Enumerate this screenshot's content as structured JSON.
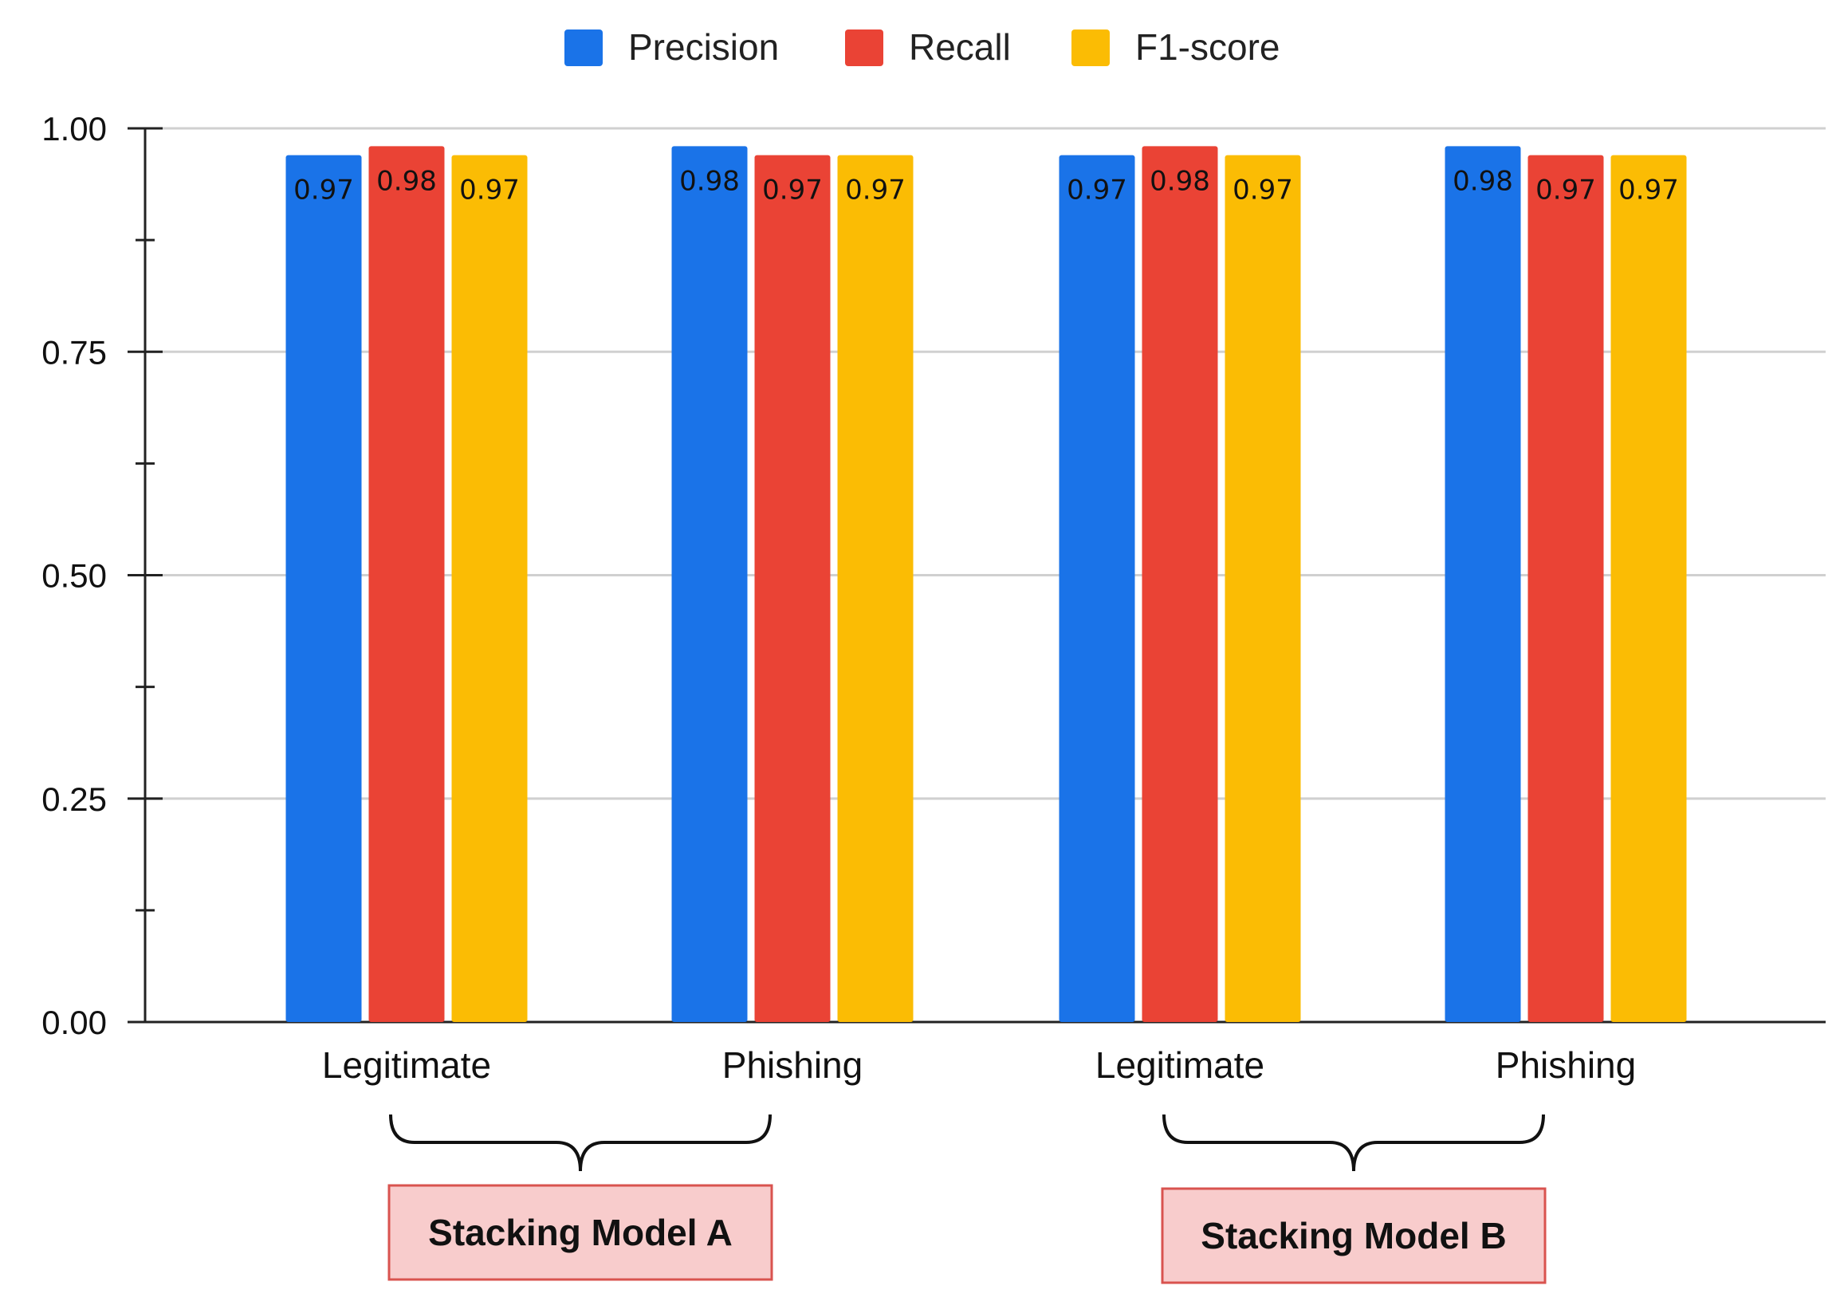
{
  "chart_data": {
    "type": "bar",
    "categories": [
      "Legitimate",
      "Phishing",
      "Legitimate",
      "Phishing"
    ],
    "series": [
      {
        "name": "Precision",
        "color": "#1a73e8",
        "values": [
          0.97,
          0.98,
          0.97,
          0.98
        ]
      },
      {
        "name": "Recall",
        "color": "#ea4335",
        "values": [
          0.98,
          0.97,
          0.98,
          0.97
        ]
      },
      {
        "name": "F1-score",
        "color": "#fbbc04",
        "values": [
          0.97,
          0.97,
          0.97,
          0.97
        ]
      }
    ],
    "ylim": [
      0,
      1
    ],
    "yticks": [
      "0.00",
      "0.25",
      "0.50",
      "0.75",
      "1.00"
    ],
    "legend_position": "top-center",
    "groups": [
      {
        "label": "Stacking Model A",
        "categories": [
          0,
          1
        ]
      },
      {
        "label": "Stacking Model B",
        "categories": [
          2,
          3
        ]
      }
    ],
    "title": "",
    "xlabel": "",
    "ylabel": ""
  }
}
